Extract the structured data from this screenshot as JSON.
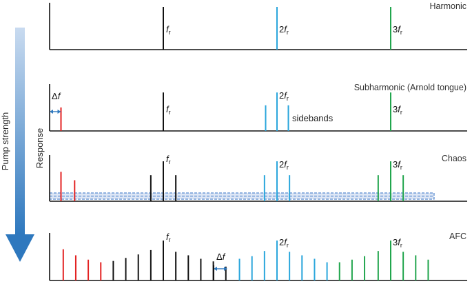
{
  "figure": {
    "side_axis_label": "Pump strength",
    "y_axis_label": "Response",
    "colors": {
      "black": "#111111",
      "red": "#e32222",
      "blue": "#2aa6dc",
      "green": "#21a54d",
      "arrow_dark": "#2e78be",
      "arrow_light": "#c9dbf0",
      "noise": "#2f6fc4",
      "noise_fill": "#dde6f5",
      "delta_arrow": "#2e78be",
      "title_gray": "#333333"
    },
    "panels": [
      {
        "id": "harmonic",
        "title": "Harmonic",
        "labels": {
          "fr": "f",
          "fr_sub": "r",
          "two_fr_coef": "2",
          "three_fr_coef": "3"
        },
        "peaks": [
          {
            "color": "black",
            "freq": 1,
            "amp": 1.0
          },
          {
            "color": "blue",
            "freq": 2,
            "amp": 1.0
          },
          {
            "color": "green",
            "freq": 3,
            "amp": 1.0
          }
        ]
      },
      {
        "id": "subharmonic",
        "title": "Subharmonic (Arnold tongue)",
        "annotation": "sidebands",
        "delta_label": "Δf",
        "labels": {
          "fr": "f",
          "fr_sub": "r",
          "two_fr_coef": "2",
          "three_fr_coef": "3"
        },
        "peaks": [
          {
            "color": "red",
            "freq": 0.1,
            "amp": 0.55
          },
          {
            "color": "black",
            "freq": 1,
            "amp": 0.9
          },
          {
            "color": "blue",
            "freq": 1.9,
            "amp": 0.6
          },
          {
            "color": "blue",
            "freq": 2,
            "amp": 0.9
          },
          {
            "color": "blue",
            "freq": 2.1,
            "amp": 0.6
          },
          {
            "color": "green",
            "freq": 3,
            "amp": 0.9
          }
        ]
      },
      {
        "id": "chaos",
        "title": "Chaos",
        "labels": {
          "fr": "f",
          "fr_sub": "r",
          "two_fr_coef": "2",
          "three_fr_coef": "3"
        },
        "peaks": [
          {
            "color": "red",
            "freq": 0.1,
            "amp": 0.7
          },
          {
            "color": "red",
            "freq": 0.22,
            "amp": 0.5
          },
          {
            "color": "black",
            "freq": 0.89,
            "amp": 0.62
          },
          {
            "color": "black",
            "freq": 1,
            "amp": 0.95
          },
          {
            "color": "black",
            "freq": 1.11,
            "amp": 0.62
          },
          {
            "color": "blue",
            "freq": 1.89,
            "amp": 0.62
          },
          {
            "color": "blue",
            "freq": 2,
            "amp": 0.95
          },
          {
            "color": "blue",
            "freq": 2.11,
            "amp": 0.62
          },
          {
            "color": "green",
            "freq": 2.89,
            "amp": 0.62
          },
          {
            "color": "green",
            "freq": 3,
            "amp": 0.95
          },
          {
            "color": "green",
            "freq": 3.11,
            "amp": 0.62
          }
        ]
      },
      {
        "id": "afc",
        "title": "AFC",
        "delta_label": "Δf",
        "labels": {
          "fr": "f",
          "fr_sub": "r",
          "two_fr_coef": "2",
          "three_fr_coef": "3"
        },
        "peaks": [
          {
            "color": "red",
            "freq": 0.12,
            "amp": 0.72
          },
          {
            "color": "red",
            "freq": 0.23,
            "amp": 0.58
          },
          {
            "color": "red",
            "freq": 0.34,
            "amp": 0.48
          },
          {
            "color": "red",
            "freq": 0.45,
            "amp": 0.42
          },
          {
            "color": "black",
            "freq": 0.56,
            "amp": 0.45
          },
          {
            "color": "black",
            "freq": 0.67,
            "amp": 0.52
          },
          {
            "color": "black",
            "freq": 0.78,
            "amp": 0.6
          },
          {
            "color": "black",
            "freq": 0.89,
            "amp": 0.7
          },
          {
            "color": "black",
            "freq": 1.0,
            "amp": 0.92
          },
          {
            "color": "black",
            "freq": 1.11,
            "amp": 0.66
          },
          {
            "color": "black",
            "freq": 1.22,
            "amp": 0.58
          },
          {
            "color": "black",
            "freq": 1.33,
            "amp": 0.5
          },
          {
            "color": "black",
            "freq": 1.44,
            "amp": 0.44
          },
          {
            "color": "black",
            "freq": 1.55,
            "amp": 0.32
          },
          {
            "color": "blue",
            "freq": 1.67,
            "amp": 0.5
          },
          {
            "color": "blue",
            "freq": 1.78,
            "amp": 0.56
          },
          {
            "color": "blue",
            "freq": 1.89,
            "amp": 0.68
          },
          {
            "color": "blue",
            "freq": 2.0,
            "amp": 0.92
          },
          {
            "color": "blue",
            "freq": 2.11,
            "amp": 0.66
          },
          {
            "color": "blue",
            "freq": 2.22,
            "amp": 0.58
          },
          {
            "color": "blue",
            "freq": 2.33,
            "amp": 0.5
          },
          {
            "color": "blue",
            "freq": 2.44,
            "amp": 0.42
          },
          {
            "color": "green",
            "freq": 2.55,
            "amp": 0.42
          },
          {
            "color": "green",
            "freq": 2.66,
            "amp": 0.48
          },
          {
            "color": "green",
            "freq": 2.77,
            "amp": 0.56
          },
          {
            "color": "green",
            "freq": 2.89,
            "amp": 0.68
          },
          {
            "color": "green",
            "freq": 3.0,
            "amp": 0.92
          },
          {
            "color": "green",
            "freq": 3.11,
            "amp": 0.66
          },
          {
            "color": "green",
            "freq": 3.22,
            "amp": 0.58
          },
          {
            "color": "green",
            "freq": 3.33,
            "amp": 0.48
          }
        ]
      }
    ]
  }
}
